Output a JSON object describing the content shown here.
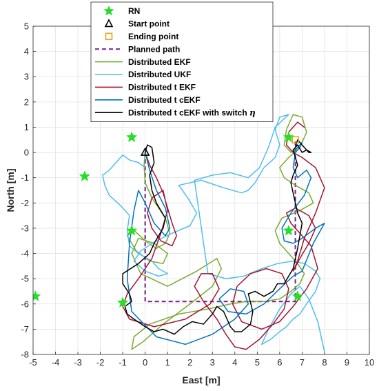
{
  "chart_data": {
    "type": "line",
    "title": "",
    "xlabel": "East [m]",
    "ylabel": "North [m]",
    "xlim": [
      -5,
      10
    ],
    "ylim": [
      -8,
      5
    ],
    "xticks": [
      -5,
      -4,
      -3,
      -2,
      -1,
      0,
      1,
      2,
      3,
      4,
      5,
      6,
      7,
      8,
      9,
      10
    ],
    "yticks": [
      -8,
      -7,
      -6,
      -5,
      -4,
      -3,
      -2,
      -1,
      0,
      1,
      2,
      3,
      4,
      5
    ],
    "grid": true,
    "legend_position": "top-center",
    "legend": [
      {
        "label": "RN",
        "kind": "star",
        "color": "#22e022"
      },
      {
        "label": "Start point",
        "kind": "triangle",
        "color": "#000000"
      },
      {
        "label": "Ending point",
        "kind": "square",
        "color": "#e8a317"
      },
      {
        "label": "Planned path",
        "kind": "dashed",
        "color": "#7e2f8e"
      },
      {
        "label": "Distributed EKF",
        "kind": "line",
        "color": "#77ac30"
      },
      {
        "label": "Distributed UKF",
        "kind": "line",
        "color": "#4dbeee"
      },
      {
        "label": "Distributed t EKF",
        "kind": "line",
        "color": "#a2142f"
      },
      {
        "label": "Distributed t cEKF",
        "kind": "line",
        "color": "#0072bd"
      },
      {
        "label": "Distributed t cEKF with switch ",
        "label_symbol": "η",
        "kind": "line",
        "color": "#000000"
      }
    ],
    "rn_points": [
      [
        -0.6,
        0.6
      ],
      [
        -2.7,
        -0.95
      ],
      [
        -0.6,
        -3.1
      ],
      [
        -4.9,
        -5.7
      ],
      [
        -1.0,
        -5.95
      ],
      [
        6.4,
        0.6
      ],
      [
        6.4,
        -3.1
      ],
      [
        6.8,
        -5.7
      ]
    ],
    "start_point": [
      0.0,
      0.0
    ],
    "end_point": [
      6.7,
      0.5
    ],
    "planned_path": [
      [
        0.0,
        0.0
      ],
      [
        0.0,
        -5.9
      ],
      [
        6.7,
        -5.9
      ],
      [
        6.7,
        0.5
      ]
    ],
    "series": [
      {
        "name": "Distributed EKF",
        "color": "#77ac30",
        "x": [
          0.0,
          -0.05,
          0.0,
          0.3,
          0.6,
          0.9,
          1.1,
          0.9,
          0.5,
          0.0,
          -0.6,
          -0.8,
          -0.4,
          0.2,
          0.8,
          1.0,
          0.4,
          -0.3,
          -0.6,
          -0.2,
          1.0,
          2.3,
          3.2,
          3.4,
          3.0,
          2.0,
          0.8,
          -0.1,
          -0.6,
          -0.5,
          0.2,
          1.5,
          2.8,
          3.8,
          4.5,
          5.3,
          6.0,
          6.5,
          6.9,
          7.1,
          6.8,
          6.4,
          6.0,
          5.8,
          6.1,
          6.9,
          7.5,
          7.3,
          6.7,
          6.2,
          6.0,
          6.4,
          6.9,
          7.2,
          7.0,
          6.6,
          6.3,
          6.2,
          6.5,
          6.8
        ],
        "y": [
          0.0,
          -0.5,
          -1.2,
          -1.8,
          -2.2,
          -2.6,
          -3.2,
          -3.6,
          -3.8,
          -3.5,
          -3.0,
          -3.3,
          -3.9,
          -4.3,
          -4.4,
          -4.0,
          -3.6,
          -3.4,
          -4.0,
          -4.8,
          -5.3,
          -4.7,
          -4.2,
          -4.6,
          -5.3,
          -6.0,
          -6.8,
          -7.5,
          -7.8,
          -7.3,
          -6.8,
          -6.4,
          -6.2,
          -6.0,
          -5.9,
          -5.9,
          -5.8,
          -5.5,
          -5.2,
          -4.8,
          -4.4,
          -4.0,
          -3.6,
          -3.1,
          -2.6,
          -2.3,
          -2.0,
          -1.6,
          -1.3,
          -1.0,
          -0.6,
          -0.2,
          0.2,
          0.8,
          1.4,
          1.5,
          0.9,
          0.3,
          0.0,
          0.3
        ]
      },
      {
        "name": "Distributed UKF",
        "color": "#4dbeee",
        "x": [
          0.0,
          -0.3,
          -0.7,
          -1.0,
          -1.3,
          -1.6,
          -1.9,
          -1.8,
          -1.6,
          -1.1,
          -0.7,
          -0.8,
          -0.7,
          -0.3,
          0.3,
          0.6,
          1.0,
          0.6,
          0.0,
          -0.5,
          -0.2,
          0.5,
          1.2,
          2.0,
          2.3,
          1.9,
          1.5,
          2.5,
          3.5,
          4.3,
          4.6,
          4.9,
          5.3,
          5.8,
          6.0,
          5.8,
          6.0,
          6.4,
          5.8,
          5.5,
          5.1,
          4.6,
          3.8,
          3.0,
          2.2,
          2.8,
          3.6,
          4.4,
          5.2,
          5.9,
          6.6,
          7.1,
          7.6,
          7.8,
          7.6,
          7.2,
          6.9,
          6.6,
          6.3,
          6.0,
          5.6,
          5.4,
          5.2,
          5.5,
          6.0,
          6.5,
          6.9,
          7.3,
          7.7,
          8.0
        ],
        "y": [
          -0.6,
          -0.4,
          -0.3,
          -0.1,
          -0.4,
          -0.7,
          -0.9,
          -1.3,
          -1.7,
          -2.1,
          -2.5,
          -3.1,
          -3.7,
          -4.0,
          -4.3,
          -4.6,
          -4.8,
          -4.9,
          -4.7,
          -4.3,
          -3.9,
          -3.5,
          -3.2,
          -2.9,
          -2.4,
          -1.8,
          -1.3,
          -1.1,
          -1.4,
          -1.6,
          -1.5,
          -1.2,
          -0.6,
          -0.2,
          0.3,
          0.9,
          1.4,
          1.5,
          1.0,
          0.2,
          -0.6,
          -1.0,
          -0.8,
          -0.9,
          -1.1,
          -4.8,
          -5.0,
          -4.9,
          -4.6,
          -4.4,
          -4.3,
          -4.4,
          -4.7,
          -5.0,
          -5.5,
          -6.0,
          -6.4,
          -6.6,
          -6.9,
          -7.1,
          -7.4,
          -7.5,
          -7.6,
          -7.0,
          -6.2,
          -5.6,
          -5.3,
          -5.8,
          -6.7,
          -7.9
        ]
      },
      {
        "name": "Distributed t EKF",
        "color": "#a2142f",
        "x": [
          0.0,
          0.2,
          0.5,
          0.8,
          1.0,
          1.2,
          1.4,
          1.2,
          0.7,
          0.3,
          0.1,
          0.3,
          0.8,
          1.0,
          0.7,
          0.3,
          -0.3,
          -0.8,
          -1.0,
          -0.7,
          0.4,
          1.8,
          2.9,
          3.3,
          3.0,
          2.5,
          2.2,
          2.6,
          3.2,
          3.6,
          4.0,
          4.5,
          5.1,
          5.7,
          6.2,
          6.4,
          6.1,
          5.4,
          4.7,
          4.1,
          3.9,
          4.3,
          5.2,
          6.0,
          6.6,
          7.2,
          7.7,
          7.4,
          6.9,
          6.5,
          6.3,
          6.7,
          7.3,
          7.6,
          7.3,
          6.9,
          6.6,
          6.8,
          7.1,
          7.6,
          8.0,
          7.6,
          7.0,
          6.6,
          6.3,
          6.4,
          6.8,
          7.1
        ],
        "y": [
          0.0,
          -0.5,
          -1.0,
          -1.6,
          -2.2,
          -2.8,
          -3.3,
          -3.7,
          -3.5,
          -3.0,
          -2.4,
          -1.8,
          -1.5,
          -2.3,
          -3.2,
          -4.2,
          -5.0,
          -5.6,
          -6.1,
          -6.6,
          -6.9,
          -6.6,
          -6.0,
          -5.4,
          -4.8,
          -4.8,
          -5.3,
          -5.9,
          -6.6,
          -7.2,
          -7.7,
          -7.8,
          -7.4,
          -6.8,
          -6.2,
          -5.4,
          -4.8,
          -4.6,
          -4.8,
          -5.3,
          -6.0,
          -6.7,
          -7.0,
          -6.7,
          -6.1,
          -5.4,
          -4.6,
          -3.7,
          -3.2,
          -2.8,
          -2.4,
          -2.2,
          -2.5,
          -3.0,
          -3.6,
          -4.2,
          -4.7,
          -4.3,
          -3.4,
          -2.4,
          -1.4,
          -0.6,
          -0.2,
          0.0,
          0.3,
          0.8,
          1.2,
          1.0
        ]
      },
      {
        "name": "Distributed t cEKF",
        "color": "#0072bd",
        "x": [
          0.0,
          0.2,
          0.5,
          0.9,
          1.1,
          0.9,
          0.4,
          0.0,
          -0.3,
          -0.5,
          -0.7,
          -0.8,
          -0.6,
          0.5,
          1.8,
          3.0,
          4.0,
          4.6,
          4.4,
          3.8,
          3.3,
          3.7,
          4.5,
          5.3,
          6.0,
          6.6,
          7.0,
          7.5,
          8.0,
          7.6,
          7.0,
          6.6,
          6.2,
          6.1,
          6.5,
          7.1,
          7.4,
          7.2,
          6.8,
          6.6,
          6.7,
          6.9,
          7.0,
          6.8,
          6.6
        ],
        "y": [
          0.0,
          -0.7,
          -1.5,
          -2.2,
          -3.0,
          -3.3,
          -2.8,
          -2.0,
          -1.5,
          -2.3,
          -3.6,
          -5.0,
          -6.3,
          -7.3,
          -7.6,
          -7.2,
          -6.6,
          -6.0,
          -5.5,
          -5.4,
          -5.8,
          -6.3,
          -6.4,
          -6.0,
          -5.4,
          -4.9,
          -4.7,
          -3.6,
          -2.8,
          -3.0,
          -3.4,
          -3.6,
          -3.5,
          -3.0,
          -2.4,
          -1.7,
          -1.0,
          -0.7,
          -1.0,
          -0.6,
          0.0,
          0.2,
          0.4,
          0.2,
          0.0
        ]
      },
      {
        "name": "Distributed t cEKF with switch η",
        "color": "#000000",
        "x": [
          0.0,
          0.1,
          0.3,
          0.4,
          0.2,
          0.3,
          0.5,
          0.7,
          0.9,
          0.8,
          0.6,
          0.4,
          0.2,
          -0.3,
          -1.0,
          -1.0,
          -0.7,
          -0.6,
          -0.9,
          -0.8,
          -0.5,
          0.0,
          0.4,
          0.8,
          1.3,
          1.7,
          2.1,
          2.6,
          3.0,
          3.2,
          3.5,
          3.8,
          4.0,
          4.3,
          4.7,
          4.8,
          4.6,
          4.9,
          5.3,
          5.7,
          5.9,
          6.2,
          6.4,
          6.6,
          6.7,
          6.8,
          6.9,
          7.0,
          6.8,
          6.7,
          6.6,
          6.5,
          6.6,
          6.8,
          6.7,
          6.6,
          6.8,
          7.0,
          7.2,
          7.4,
          7.3,
          7.0,
          6.8,
          6.7
        ],
        "y": [
          0.0,
          0.3,
          0.2,
          -0.4,
          -0.9,
          -1.5,
          -2.0,
          -2.3,
          -2.6,
          -3.0,
          -3.3,
          -3.6,
          -4.0,
          -4.4,
          -4.8,
          -5.2,
          -5.6,
          -5.9,
          -6.1,
          -6.4,
          -6.6,
          -6.9,
          -7.1,
          -7.0,
          -7.2,
          -6.9,
          -6.7,
          -6.8,
          -6.4,
          -6.1,
          -6.3,
          -6.9,
          -7.1,
          -7.1,
          -6.8,
          -6.3,
          -5.6,
          -5.5,
          -5.7,
          -5.5,
          -5.2,
          -5.2,
          -4.9,
          -4.6,
          -4.2,
          -3.8,
          -3.3,
          -2.8,
          -2.4,
          -2.0,
          -1.6,
          -1.2,
          -0.9,
          -0.5,
          -0.2,
          0.1,
          0.3,
          0.0,
          0.1,
          0.0,
          0.0,
          0.3,
          0.5,
          0.2
        ]
      }
    ]
  }
}
